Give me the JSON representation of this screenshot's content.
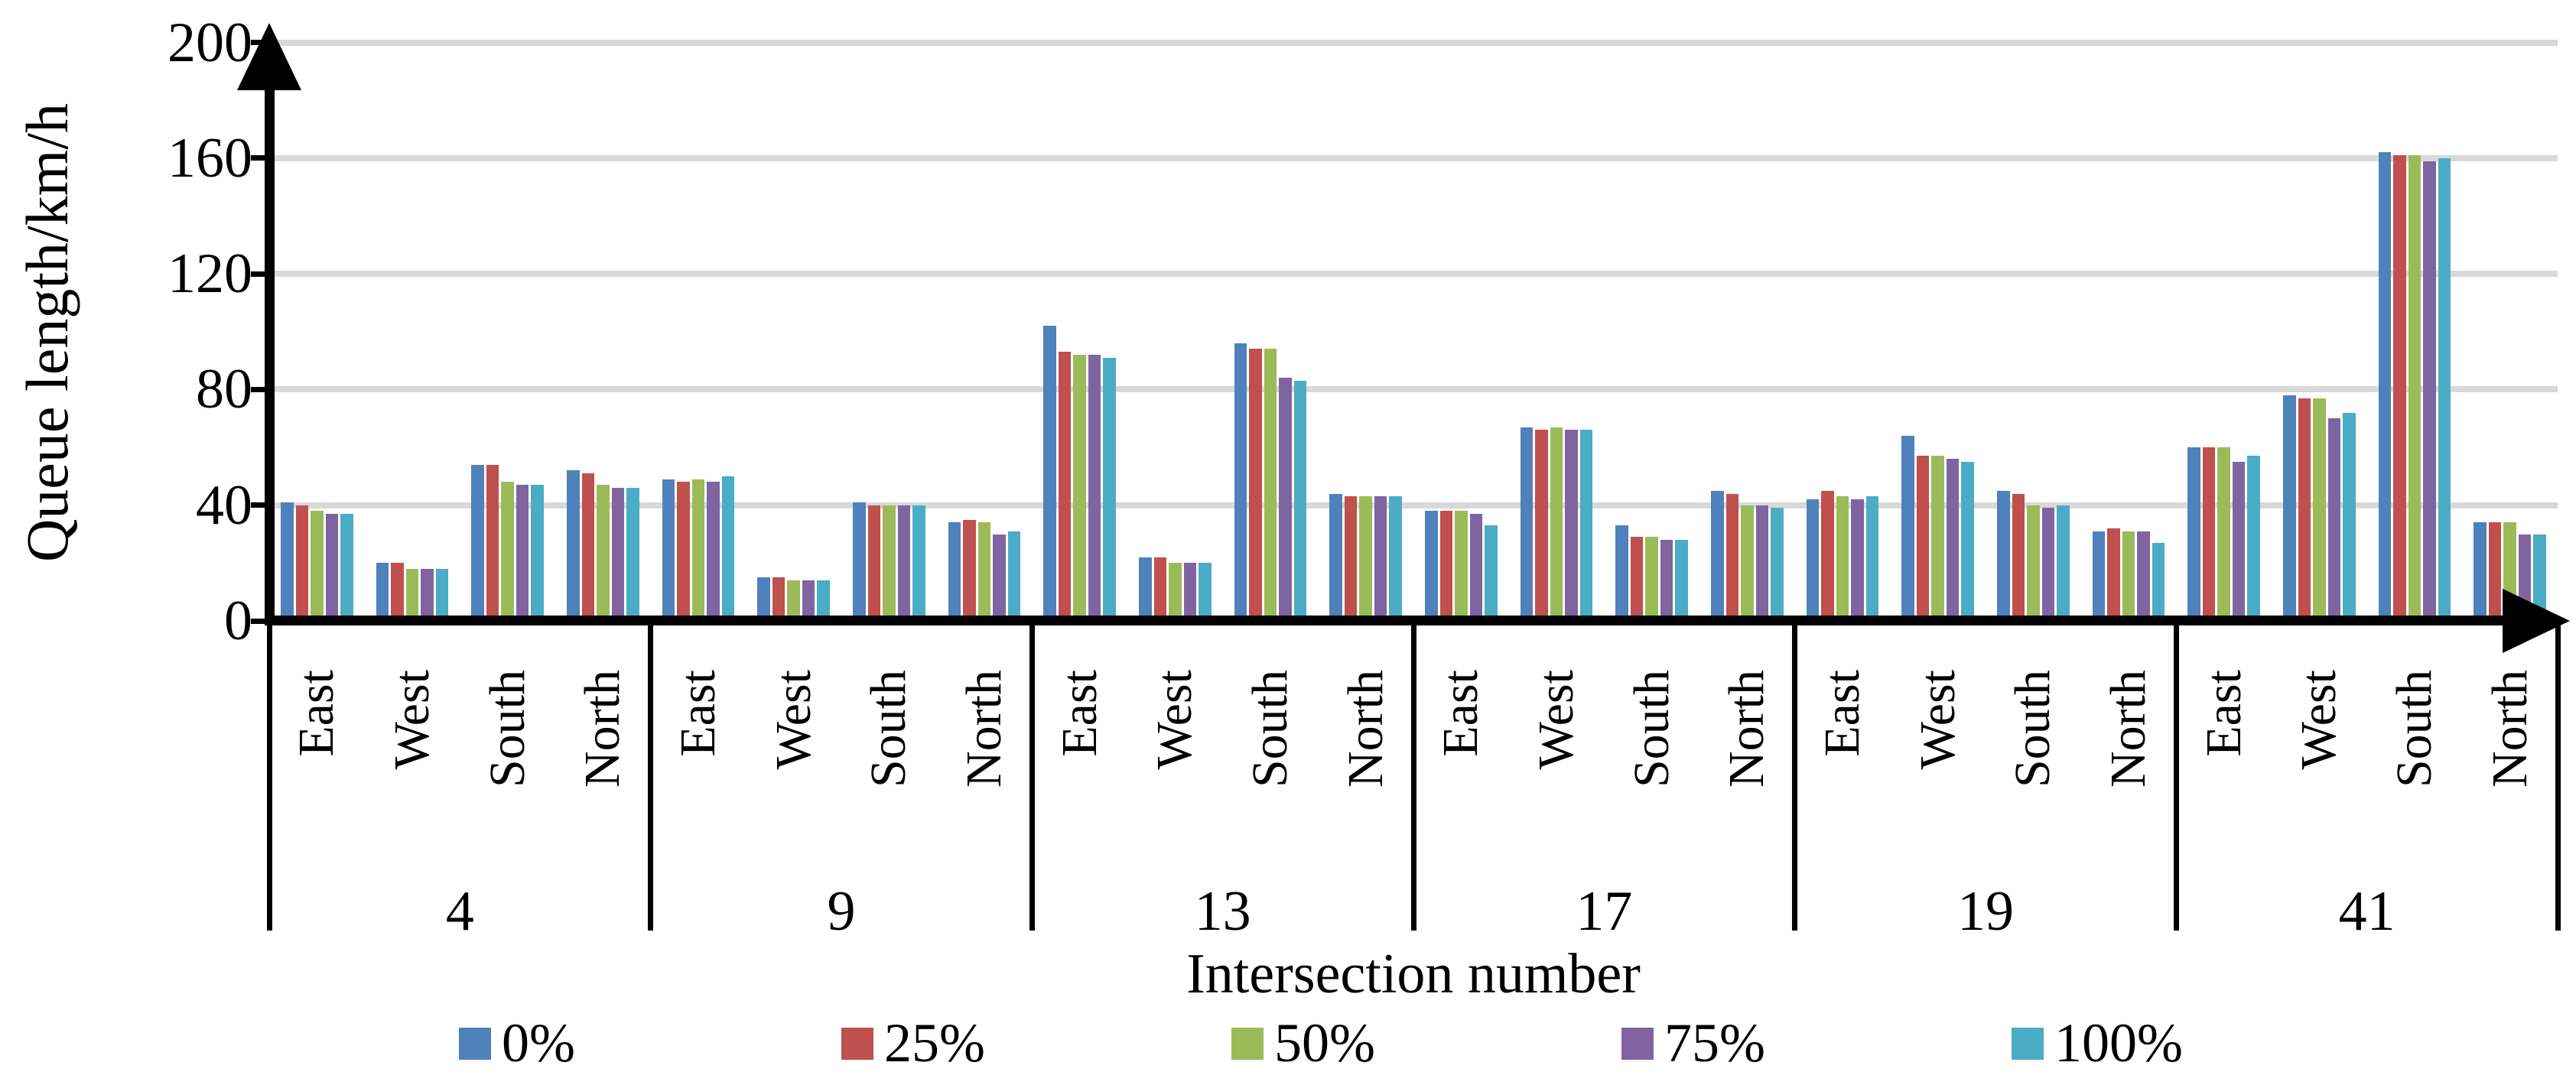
{
  "chart_data": {
    "type": "bar",
    "title": "",
    "ylabel": "Queue length/km/h",
    "xlabel": "Intersection number",
    "ylim": [
      0,
      200
    ],
    "yticks": [
      0,
      40,
      80,
      120,
      160,
      200
    ],
    "grid": true,
    "legend_position": "bottom",
    "series": [
      {
        "name": "0%",
        "color": "#4f81bd"
      },
      {
        "name": "25%",
        "color": "#c0504d"
      },
      {
        "name": "50%",
        "color": "#9bbb59"
      },
      {
        "name": "75%",
        "color": "#8064a2"
      },
      {
        "name": "100%",
        "color": "#4bacc6"
      }
    ],
    "intersections": [
      {
        "label": "4",
        "directions": [
          {
            "label": "East",
            "values": [
              41,
              40,
              38,
              37,
              37
            ]
          },
          {
            "label": "West",
            "values": [
              20,
              20,
              18,
              18,
              18
            ]
          },
          {
            "label": "South",
            "values": [
              54,
              54,
              48,
              47,
              47
            ]
          },
          {
            "label": "North",
            "values": [
              52,
              51,
              47,
              46,
              46
            ]
          }
        ]
      },
      {
        "label": "9",
        "directions": [
          {
            "label": "East",
            "values": [
              49,
              48,
              49,
              48,
              50
            ]
          },
          {
            "label": "West",
            "values": [
              15,
              15,
              14,
              14,
              14
            ]
          },
          {
            "label": "South",
            "values": [
              41,
              40,
              40,
              40,
              40
            ]
          },
          {
            "label": "North",
            "values": [
              34,
              35,
              34,
              30,
              31
            ]
          }
        ]
      },
      {
        "label": "13",
        "directions": [
          {
            "label": "East",
            "values": [
              102,
              93,
              92,
              92,
              91
            ]
          },
          {
            "label": "West",
            "values": [
              22,
              22,
              20,
              20,
              20
            ]
          },
          {
            "label": "South",
            "values": [
              96,
              94,
              94,
              84,
              83
            ]
          },
          {
            "label": "North",
            "values": [
              44,
              43,
              43,
              43,
              43
            ]
          }
        ]
      },
      {
        "label": "17",
        "directions": [
          {
            "label": "East",
            "values": [
              38,
              38,
              38,
              37,
              33
            ]
          },
          {
            "label": "West",
            "values": [
              67,
              66,
              67,
              66,
              66
            ]
          },
          {
            "label": "South",
            "values": [
              33,
              29,
              29,
              28,
              28
            ]
          },
          {
            "label": "North",
            "values": [
              45,
              44,
              40,
              40,
              39
            ]
          }
        ]
      },
      {
        "label": "19",
        "directions": [
          {
            "label": "East",
            "values": [
              42,
              45,
              43,
              42,
              43
            ]
          },
          {
            "label": "West",
            "values": [
              64,
              57,
              57,
              56,
              55
            ]
          },
          {
            "label": "South",
            "values": [
              45,
              44,
              40,
              39,
              40
            ]
          },
          {
            "label": "North",
            "values": [
              31,
              32,
              31,
              31,
              27
            ]
          }
        ]
      },
      {
        "label": "41",
        "directions": [
          {
            "label": "East",
            "values": [
              60,
              60,
              60,
              55,
              57
            ]
          },
          {
            "label": "West",
            "values": [
              78,
              77,
              77,
              70,
              72
            ]
          },
          {
            "label": "South",
            "values": [
              162,
              161,
              161,
              159,
              160
            ]
          },
          {
            "label": "North",
            "values": [
              34,
              34,
              34,
              30,
              30
            ]
          }
        ]
      }
    ]
  }
}
